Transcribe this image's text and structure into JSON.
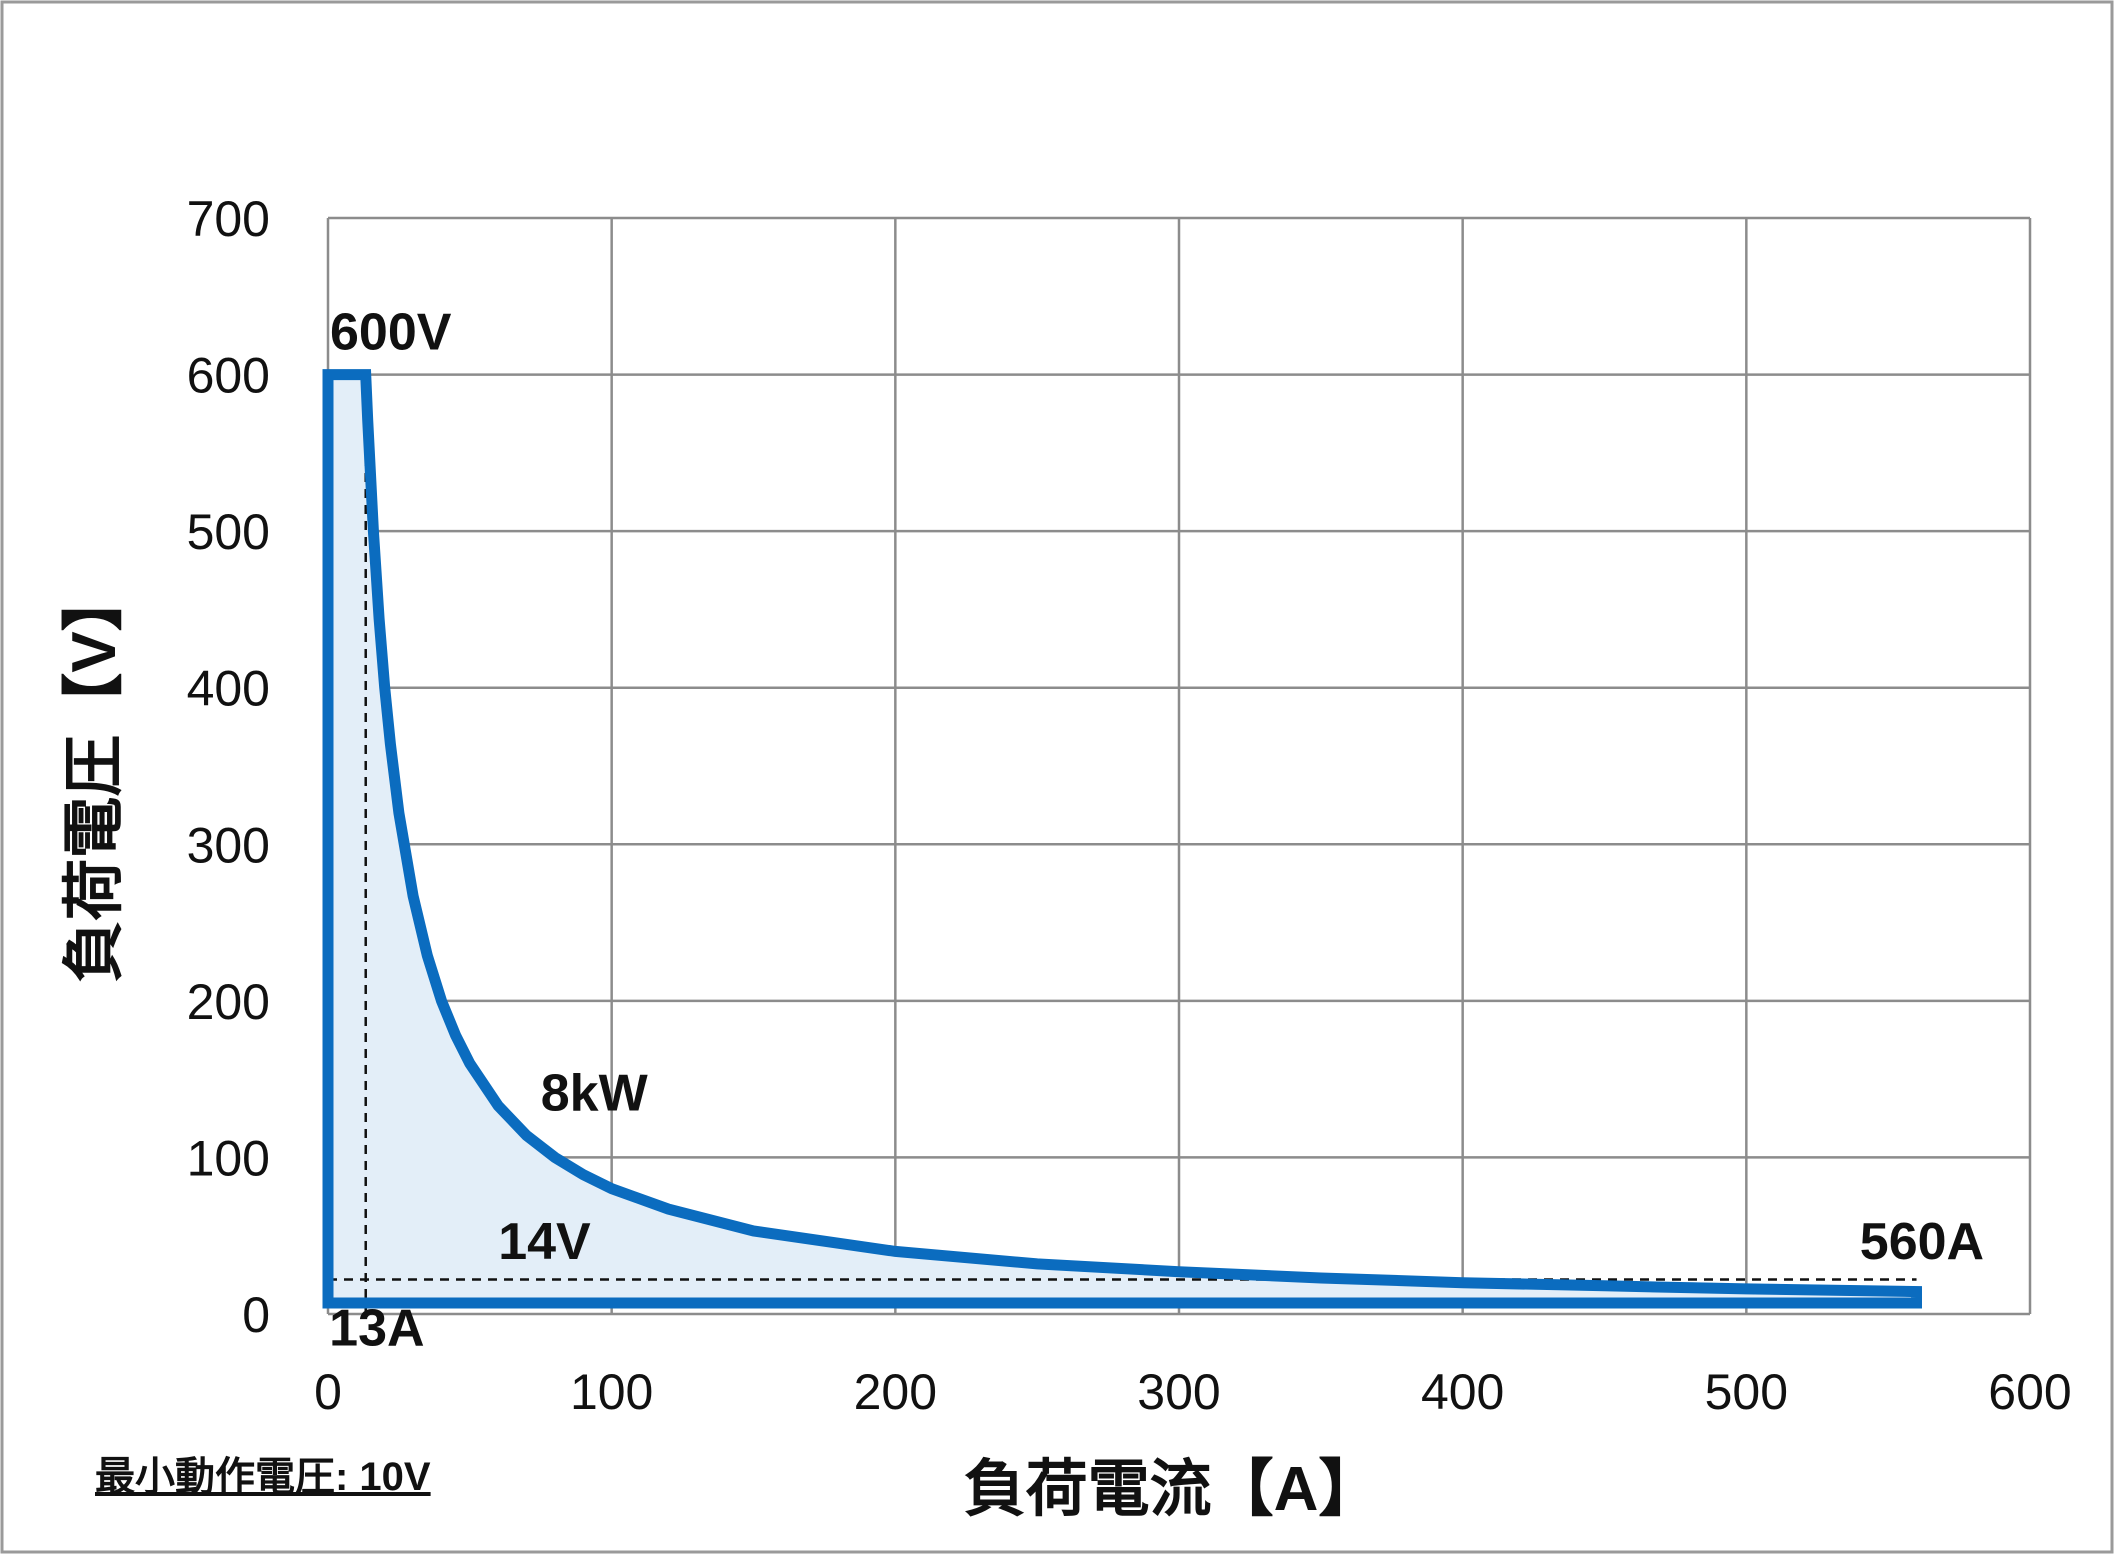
{
  "chart_data": {
    "type": "area",
    "title": "",
    "xlabel": "負荷電流【A】",
    "ylabel": "負荷電圧【V】",
    "xlim": [
      0,
      600
    ],
    "ylim": [
      0,
      700
    ],
    "xticks": [
      0,
      100,
      200,
      300,
      400,
      500,
      600
    ],
    "yticks": [
      0,
      100,
      200,
      300,
      400,
      500,
      600,
      700
    ],
    "xtick_labels": [
      "0",
      "100",
      "200",
      "300",
      "400",
      "500",
      "600"
    ],
    "ytick_labels": [
      "0",
      "100",
      "200",
      "300",
      "400",
      "500",
      "600",
      "700"
    ],
    "grid": true,
    "legend": "none",
    "series": [
      {
        "color": "#0b6cbf",
        "fill": "#e3eef8",
        "x": [
          0,
          13.3,
          14,
          16,
          18,
          20,
          22,
          25,
          30,
          35,
          40,
          45,
          50,
          60,
          70,
          80,
          90,
          100,
          120,
          150,
          200,
          250,
          300,
          350,
          400,
          450,
          500,
          560,
          560,
          0
        ],
        "y": [
          600,
          600,
          571,
          500,
          444,
          400,
          364,
          320,
          267,
          229,
          200,
          178,
          160,
          133,
          114,
          100,
          89,
          80,
          67,
          53,
          40,
          32,
          27,
          23,
          20,
          18,
          16,
          14.3,
          7,
          7
        ]
      }
    ],
    "annotations": [
      {
        "text": "600V",
        "x": 0,
        "y": 600
      },
      {
        "text": "8kW",
        "x": 75,
        "y": 130
      },
      {
        "text": "14V",
        "x": 60,
        "y": 35
      },
      {
        "text": "560A",
        "x": 540,
        "y": 35
      },
      {
        "text": "13A",
        "x": 13,
        "y": -20
      }
    ],
    "reference_lines": [
      {
        "type": "vertical",
        "x": 13.3,
        "y_from": 0,
        "y_to": 600,
        "style": "dashed"
      },
      {
        "type": "horizontal",
        "y": 22,
        "x_from": 0,
        "x_to": 560,
        "style": "dashed"
      }
    ]
  },
  "footnote": "最小動作電圧: 10V"
}
